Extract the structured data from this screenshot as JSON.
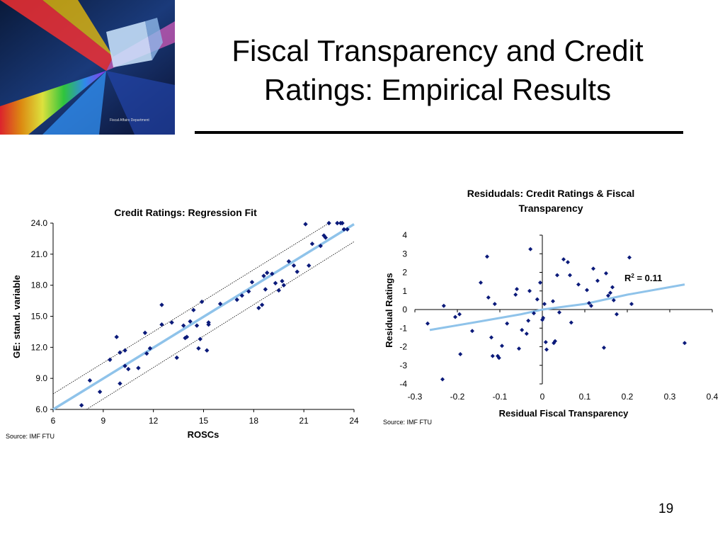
{
  "slide": {
    "title_line1": "Fiscal Transparency and Credit",
    "title_line2": "Ratings: Empirical Results",
    "page_number": "19",
    "logo_text": "Fiscal Affairs Department"
  },
  "chart_data": [
    {
      "type": "scatter",
      "title": "Credit Ratings: Regression Fit",
      "xlabel": "ROSCs",
      "ylabel": "GE: stand. variable",
      "xlim": [
        6,
        24
      ],
      "ylim": [
        6,
        24
      ],
      "x_ticks": [
        "6",
        "9",
        "12",
        "15",
        "18",
        "21",
        "24"
      ],
      "y_ticks": [
        "6.0",
        "9.0",
        "12.0",
        "15.0",
        "18.0",
        "21.0",
        "24.0"
      ],
      "source": "Source: IMF FTU",
      "grid": false,
      "legend": "none",
      "fit_line": [
        [
          6,
          6.0
        ],
        [
          24,
          23.9
        ]
      ],
      "band_upper": [
        [
          6,
          7.5
        ],
        [
          22.5,
          24.0
        ]
      ],
      "band_lower": [
        [
          8,
          6.0
        ],
        [
          24,
          22.2
        ]
      ],
      "points": [
        [
          7.7,
          6.4
        ],
        [
          8.2,
          8.8
        ],
        [
          8.8,
          7.7
        ],
        [
          9.4,
          10.8
        ],
        [
          9.8,
          13.0
        ],
        [
          10.0,
          8.5
        ],
        [
          10.0,
          11.5
        ],
        [
          10.3,
          11.7
        ],
        [
          10.3,
          10.2
        ],
        [
          10.5,
          9.9
        ],
        [
          11.1,
          10.0
        ],
        [
          11.5,
          13.4
        ],
        [
          11.6,
          11.4
        ],
        [
          11.8,
          11.9
        ],
        [
          12.5,
          16.1
        ],
        [
          12.5,
          14.2
        ],
        [
          13.1,
          14.4
        ],
        [
          13.4,
          11.0
        ],
        [
          13.8,
          14.1
        ],
        [
          13.9,
          12.9
        ],
        [
          14.0,
          13.0
        ],
        [
          14.2,
          14.5
        ],
        [
          14.4,
          15.6
        ],
        [
          14.6,
          14.1
        ],
        [
          14.7,
          11.9
        ],
        [
          14.8,
          12.8
        ],
        [
          14.9,
          16.4
        ],
        [
          15.2,
          11.7
        ],
        [
          15.3,
          14.2
        ],
        [
          15.3,
          14.4
        ],
        [
          16.0,
          16.2
        ],
        [
          17.0,
          16.6
        ],
        [
          17.3,
          17.0
        ],
        [
          17.7,
          17.4
        ],
        [
          17.9,
          18.3
        ],
        [
          18.3,
          15.8
        ],
        [
          18.5,
          16.1
        ],
        [
          18.6,
          18.9
        ],
        [
          18.7,
          17.6
        ],
        [
          18.8,
          19.2
        ],
        [
          19.1,
          19.1
        ],
        [
          19.3,
          18.2
        ],
        [
          19.5,
          17.5
        ],
        [
          19.7,
          18.4
        ],
        [
          19.8,
          18.0
        ],
        [
          20.1,
          20.3
        ],
        [
          20.4,
          19.9
        ],
        [
          20.6,
          19.3
        ],
        [
          21.1,
          23.9
        ],
        [
          21.3,
          19.9
        ],
        [
          21.5,
          22.0
        ],
        [
          22.0,
          21.8
        ],
        [
          22.2,
          22.8
        ],
        [
          22.3,
          22.6
        ],
        [
          22.5,
          24.0
        ],
        [
          23.0,
          24.0
        ],
        [
          23.2,
          24.0
        ],
        [
          23.3,
          24.0
        ],
        [
          23.4,
          23.4
        ],
        [
          23.6,
          23.4
        ]
      ]
    },
    {
      "type": "scatter",
      "title_line1": "Residudals: Credit Ratings & Fiscal",
      "title_line2": "Transparency",
      "xlabel": "Residual Fiscal Transparency",
      "ylabel": "Residual Ratings",
      "xlim": [
        -0.3,
        0.4
      ],
      "ylim": [
        -4,
        4
      ],
      "x_ticks": [
        "-0.3",
        "-0.2",
        "-0.1",
        "0",
        "0.1",
        "0.2",
        "0.3",
        "0.4"
      ],
      "y_ticks": [
        "-4",
        "-3",
        "-2",
        "-1",
        "0",
        "1",
        "2",
        "3",
        "4"
      ],
      "annotation": "R",
      "annotation_sup": "2",
      "annotation_rest": " = 0.11",
      "source": "Source: IMF FTU",
      "grid": false,
      "legend": "none",
      "fit_line": [
        [
          -0.265,
          -1.1
        ],
        [
          -0.15,
          -0.65
        ],
        [
          -0.05,
          -0.25
        ],
        [
          0.0,
          0.0
        ],
        [
          0.1,
          0.3
        ],
        [
          0.2,
          0.8
        ],
        [
          0.335,
          1.35
        ]
      ],
      "points": [
        [
          -0.27,
          -0.75
        ],
        [
          -0.235,
          -3.75
        ],
        [
          -0.232,
          0.2
        ],
        [
          -0.205,
          -0.4
        ],
        [
          -0.195,
          -0.25
        ],
        [
          -0.193,
          -2.4
        ],
        [
          -0.165,
          -1.15
        ],
        [
          -0.145,
          1.45
        ],
        [
          -0.13,
          2.85
        ],
        [
          -0.127,
          0.65
        ],
        [
          -0.12,
          -1.5
        ],
        [
          -0.117,
          -2.5
        ],
        [
          -0.112,
          0.3
        ],
        [
          -0.105,
          -2.5
        ],
        [
          -0.102,
          -2.6
        ],
        [
          -0.095,
          -1.95
        ],
        [
          -0.083,
          -0.75
        ],
        [
          -0.063,
          0.8
        ],
        [
          -0.06,
          1.1
        ],
        [
          -0.055,
          -2.1
        ],
        [
          -0.048,
          -1.1
        ],
        [
          -0.037,
          -1.3
        ],
        [
          -0.033,
          -0.6
        ],
        [
          -0.03,
          1.0
        ],
        [
          -0.028,
          3.25
        ],
        [
          -0.02,
          -0.2
        ],
        [
          -0.012,
          0.55
        ],
        [
          -0.005,
          1.45
        ],
        [
          0.0,
          -0.55
        ],
        [
          0.002,
          -0.45
        ],
        [
          0.005,
          0.3
        ],
        [
          0.008,
          -1.75
        ],
        [
          0.01,
          -2.15
        ],
        [
          0.025,
          0.45
        ],
        [
          0.027,
          -1.8
        ],
        [
          0.03,
          -1.7
        ],
        [
          0.035,
          1.85
        ],
        [
          0.04,
          -0.15
        ],
        [
          0.05,
          2.7
        ],
        [
          0.06,
          2.55
        ],
        [
          0.065,
          1.85
        ],
        [
          0.068,
          -0.7
        ],
        [
          0.085,
          1.35
        ],
        [
          0.105,
          1.05
        ],
        [
          0.11,
          0.35
        ],
        [
          0.115,
          0.2
        ],
        [
          0.12,
          2.2
        ],
        [
          0.13,
          1.55
        ],
        [
          0.145,
          -2.05
        ],
        [
          0.15,
          1.95
        ],
        [
          0.155,
          0.75
        ],
        [
          0.16,
          0.9
        ],
        [
          0.165,
          1.2
        ],
        [
          0.168,
          0.5
        ],
        [
          0.175,
          -0.25
        ],
        [
          0.205,
          2.8
        ],
        [
          0.21,
          0.3
        ],
        [
          0.335,
          -1.8
        ]
      ]
    }
  ]
}
